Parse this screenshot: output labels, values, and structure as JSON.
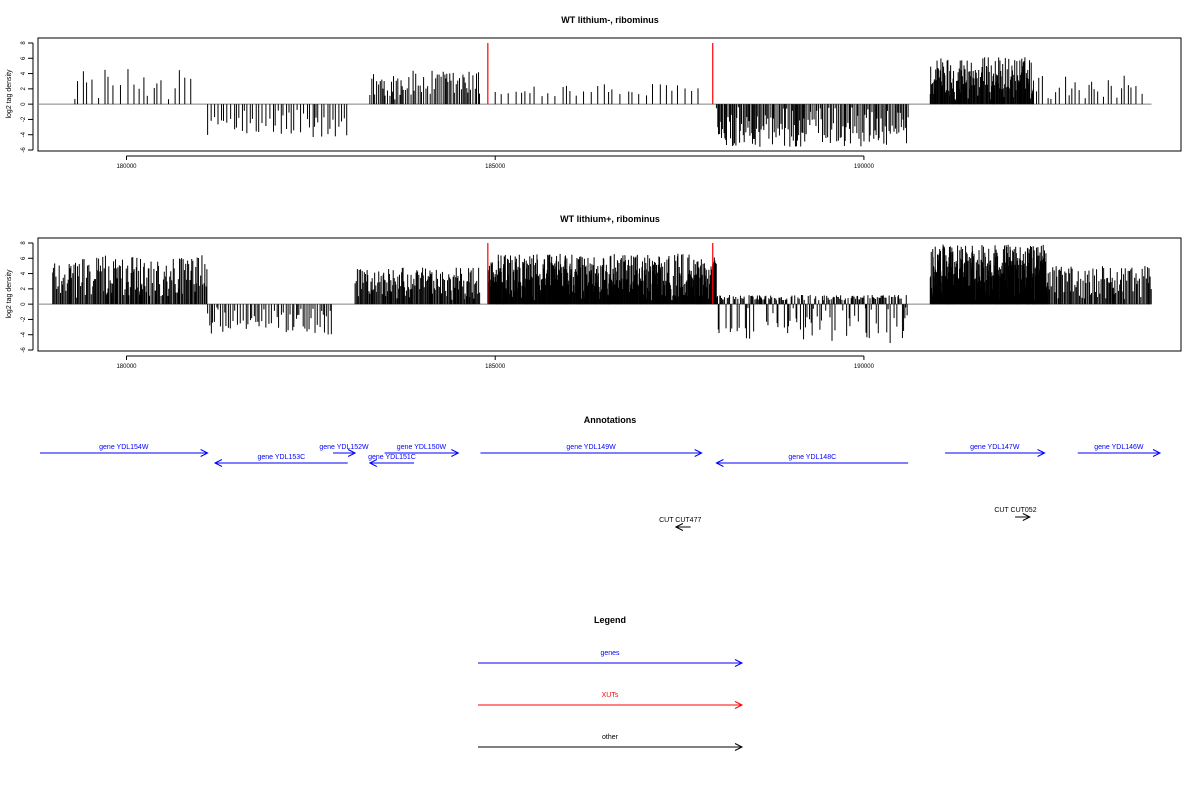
{
  "tracks": [
    {
      "title": "WT lithium-, ribominus",
      "ylabel": "log2 tag density",
      "yticks": [
        -6,
        -4,
        -2,
        0,
        2,
        4,
        6,
        8
      ],
      "xticks": [
        180000,
        185000,
        190000
      ],
      "chart_data": {
        "type": "bar",
        "title": "WT lithium-, ribominus",
        "ylabel": "log2 tag density",
        "xlim": [
          178800,
          194300
        ],
        "ylim": [
          -6,
          8
        ],
        "baseline_range": [
          178800,
          193900
        ],
        "highlight_positions": [
          184900,
          187950
        ],
        "highlight_color": "#ff0000",
        "segments": [
          {
            "x0": 179300,
            "x1": 180900,
            "lo": 0,
            "hi": 4.6,
            "step": 70
          },
          {
            "x0": 181100,
            "x1": 183000,
            "lo": -4.3,
            "hi": 0,
            "step": 38
          },
          {
            "x0": 183300,
            "x1": 184800,
            "lo": 0,
            "hi": 4.4,
            "step": 24
          },
          {
            "x0": 185000,
            "x1": 187800,
            "lo": 0,
            "hi": 2.7,
            "step": 80
          },
          {
            "x0": 188000,
            "x1": 190600,
            "lo": -5.6,
            "hi": 0,
            "step": 18
          },
          {
            "x0": 190900,
            "x1": 192300,
            "lo": 0,
            "hi": 6.2,
            "step": 9
          },
          {
            "x0": 192300,
            "x1": 193800,
            "lo": 0,
            "hi": 3.8,
            "step": 60
          }
        ]
      }
    },
    {
      "title": "WT lithium+, ribominus",
      "ylabel": "log2 tag density",
      "yticks": [
        -6,
        -4,
        -2,
        0,
        2,
        4,
        6,
        8
      ],
      "xticks": [
        180000,
        185000,
        190000
      ],
      "chart_data": {
        "type": "bar",
        "title": "WT lithium+, ribominus",
        "ylabel": "log2 tag density",
        "xlim": [
          178800,
          194300
        ],
        "ylim": [
          -6,
          8
        ],
        "baseline_range": [
          178800,
          193900
        ],
        "highlight_positions": [
          184900,
          187950
        ],
        "highlight_color": "#ff0000",
        "segments": [
          {
            "x0": 179000,
            "x1": 181100,
            "lo": 0,
            "hi": 6.4,
            "step": 14
          },
          {
            "x0": 181100,
            "x1": 182800,
            "lo": -4.0,
            "hi": 0,
            "step": 28
          },
          {
            "x0": 183100,
            "x1": 184800,
            "lo": 0,
            "hi": 4.8,
            "step": 12
          },
          {
            "x0": 184900,
            "x1": 188000,
            "lo": 0,
            "hi": 6.6,
            "step": 7
          },
          {
            "x0": 188000,
            "x1": 190600,
            "lo": -5.2,
            "hi": 1.2,
            "step": 14
          },
          {
            "x0": 190900,
            "x1": 192500,
            "lo": 0,
            "hi": 7.8,
            "step": 5
          },
          {
            "x0": 192500,
            "x1": 193900,
            "lo": 0,
            "hi": 5.0,
            "step": 14
          }
        ]
      }
    }
  ],
  "annotations": {
    "title": "Annotations",
    "features": [
      {
        "label": "gene YDL154W",
        "type": "gene",
        "start": 178400,
        "end": 181100,
        "strand": "+",
        "row": 0
      },
      {
        "label": "gene YDL153C",
        "type": "gene",
        "start": 181200,
        "end": 183000,
        "strand": "-",
        "row": 1
      },
      {
        "label": "gene YDL152W",
        "type": "gene",
        "start": 182800,
        "end": 183100,
        "strand": "+",
        "row": 0
      },
      {
        "label": "gene YDL151C",
        "type": "gene",
        "start": 183300,
        "end": 183900,
        "strand": "-",
        "row": 1
      },
      {
        "label": "gene YDL150W",
        "type": "gene",
        "start": 183500,
        "end": 184500,
        "strand": "+",
        "row": 0
      },
      {
        "label": "gene YDL149W",
        "type": "gene",
        "start": 184800,
        "end": 187800,
        "strand": "+",
        "row": 0
      },
      {
        "label": "gene YDL148C",
        "type": "gene",
        "start": 188000,
        "end": 190600,
        "strand": "-",
        "row": 1
      },
      {
        "label": "gene YDL147W",
        "type": "gene",
        "start": 191100,
        "end": 192450,
        "strand": "+",
        "row": 0
      },
      {
        "label": "gene YDL146W",
        "type": "gene",
        "start": 192900,
        "end": 194400,
        "strand": "+",
        "row": 0
      },
      {
        "label": "CUT CUT477",
        "type": "other",
        "start": 187450,
        "end": 187650,
        "strand": "-",
        "row": 2
      },
      {
        "label": "CUT CUT052",
        "type": "other",
        "start": 192050,
        "end": 192250,
        "strand": "+",
        "row": 3
      }
    ]
  },
  "legend": {
    "title": "Legend",
    "items": [
      {
        "label": "genes",
        "color": "#0000ff"
      },
      {
        "label": "XUTs",
        "color": "#ff0000"
      },
      {
        "label": "other",
        "color": "#000000"
      }
    ]
  },
  "colors": {
    "gene": "#0000ff",
    "xut": "#ff0000",
    "other": "#000000",
    "bar": "#000000",
    "baseline": "#808080"
  }
}
